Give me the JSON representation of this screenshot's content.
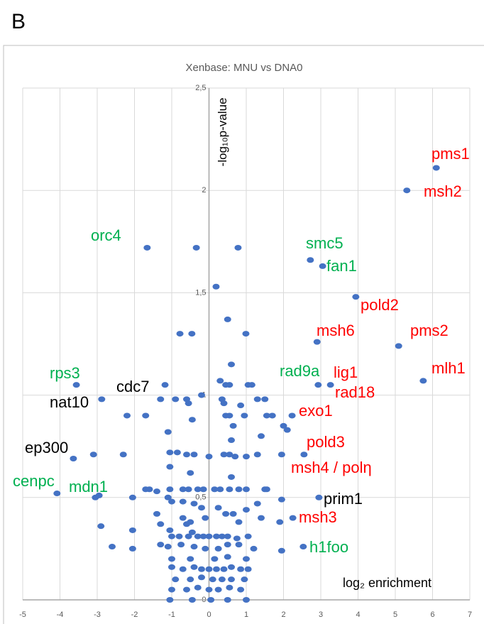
{
  "panel_label": "B",
  "chart_data": {
    "type": "scatter",
    "title": "Xenbase: MNU vs DNA0",
    "x_label": "log₂ enrichment",
    "y_label": "-log₁₀p-value",
    "color": "#4472c4",
    "grid": true,
    "xlim": [
      -5,
      7
    ],
    "xticks": [
      -5,
      -4,
      -3,
      -2,
      -1,
      0,
      1,
      2,
      3,
      4,
      5,
      6,
      7
    ],
    "ylim": [
      0,
      2.5
    ],
    "yticks": [
      0,
      {
        "value": 0.5,
        "label": "0,5"
      },
      1,
      {
        "value": 1.5,
        "label": "1,5"
      },
      2,
      {
        "value": 2.5,
        "label": "2,5"
      }
    ],
    "x": [
      6.1,
      5.31,
      -1.66,
      -0.34,
      0.78,
      2.72,
      3.05,
      0.19,
      3.94,
      5.09,
      2.9,
      -0.78,
      -0.46,
      0.99,
      0.5,
      5.75,
      2.93,
      3.26,
      -3.56,
      -1.18,
      -2.88,
      2.23,
      -3.64,
      2.55,
      -4.08,
      -3.05,
      -2.95,
      2.95,
      2.25,
      2.53,
      -2.2,
      -1.7,
      -1.3,
      -0.9,
      -0.6,
      -0.55,
      -0.2,
      0.35,
      0.4,
      0.45,
      0.55,
      0.45,
      0.55,
      0.85,
      1.05,
      1.15,
      1.3,
      1.5,
      1.55,
      1.7,
      2.0,
      2.1,
      0.65,
      1.4,
      -1.1,
      0.6,
      0.3,
      0.6,
      0.95,
      -0.45,
      -3.1,
      -2.3,
      -1.05,
      -0.85,
      -0.6,
      -0.4,
      0.0,
      0.4,
      0.55,
      0.7,
      1.0,
      1.3,
      1.95,
      -1.05,
      -0.5,
      0.6,
      -1.7,
      -1.6,
      -1.4,
      -1.05,
      -0.7,
      -0.55,
      -0.3,
      -0.15,
      0.15,
      0.3,
      0.55,
      0.8,
      1.0,
      1.5,
      1.55,
      -2.05,
      -1.1,
      -1.0,
      -0.7,
      -0.4,
      -0.2,
      0.25,
      0.45,
      0.65,
      1.0,
      1.3,
      1.95,
      -1.4,
      -0.7,
      -0.5,
      -0.1,
      0.8,
      1.4,
      1.9,
      -2.9,
      -2.05,
      -1.3,
      -1.05,
      -0.6,
      -0.45,
      -1.0,
      -0.8,
      -0.55,
      -0.3,
      -0.15,
      0.0,
      0.2,
      0.35,
      0.5,
      0.75,
      1.05,
      -2.6,
      -2.05,
      -1.3,
      -1.1,
      -0.75,
      -0.4,
      -0.1,
      0.25,
      0.5,
      0.8,
      1.2,
      1.95,
      -1.0,
      -0.5,
      0.15,
      0.5,
      1.0,
      -1.0,
      -0.7,
      -0.4,
      -0.2,
      0.0,
      0.2,
      0.4,
      0.6,
      0.85,
      1.05,
      -0.9,
      -0.5,
      -0.2,
      0.1,
      0.35,
      0.6,
      0.95,
      -1.0,
      -0.6,
      -0.3,
      0.0,
      0.25,
      0.55,
      0.85,
      -1.05,
      -0.45,
      0.05,
      0.5,
      1.0
    ],
    "values": [
      2.11,
      2.0,
      1.72,
      1.72,
      1.72,
      1.66,
      1.63,
      1.53,
      1.48,
      1.24,
      1.26,
      1.3,
      1.3,
      1.3,
      1.37,
      1.07,
      1.05,
      1.05,
      1.05,
      1.05,
      0.98,
      0.9,
      0.69,
      0.71,
      0.52,
      0.5,
      0.51,
      0.5,
      0.4,
      0.26,
      0.9,
      0.9,
      0.98,
      0.98,
      0.98,
      0.96,
      1.0,
      0.98,
      0.96,
      1.05,
      1.05,
      0.9,
      0.9,
      0.95,
      1.05,
      1.05,
      0.98,
      0.98,
      0.9,
      0.9,
      0.85,
      0.83,
      0.85,
      0.8,
      0.82,
      0.78,
      1.07,
      1.15,
      0.9,
      0.88,
      0.71,
      0.71,
      0.72,
      0.72,
      0.71,
      0.71,
      0.7,
      0.71,
      0.71,
      0.7,
      0.7,
      0.71,
      0.71,
      0.65,
      0.62,
      0.6,
      0.54,
      0.54,
      0.53,
      0.54,
      0.54,
      0.54,
      0.54,
      0.54,
      0.54,
      0.54,
      0.54,
      0.54,
      0.54,
      0.54,
      0.54,
      0.5,
      0.5,
      0.48,
      0.48,
      0.47,
      0.45,
      0.45,
      0.42,
      0.42,
      0.44,
      0.47,
      0.49,
      0.42,
      0.4,
      0.38,
      0.4,
      0.38,
      0.4,
      0.38,
      0.36,
      0.34,
      0.37,
      0.34,
      0.37,
      0.33,
      0.31,
      0.31,
      0.31,
      0.31,
      0.31,
      0.31,
      0.31,
      0.31,
      0.31,
      0.3,
      0.31,
      0.26,
      0.25,
      0.27,
      0.26,
      0.27,
      0.26,
      0.25,
      0.25,
      0.27,
      0.27,
      0.25,
      0.24,
      0.2,
      0.2,
      0.2,
      0.21,
      0.2,
      0.16,
      0.15,
      0.16,
      0.15,
      0.15,
      0.15,
      0.15,
      0.16,
      0.15,
      0.15,
      0.1,
      0.1,
      0.11,
      0.1,
      0.1,
      0.1,
      0.1,
      0.05,
      0.05,
      0.06,
      0.05,
      0.05,
      0.06,
      0.05,
      0.0,
      0.0,
      0.0,
      0.0,
      0.0
    ],
    "annotations": [
      {
        "text": "pms1",
        "color": "#ff0000"
      },
      {
        "text": "msh2",
        "color": "#ff0000"
      },
      {
        "text": "orc4",
        "color": "#00b050"
      },
      {
        "text": "smc5",
        "color": "#00b050"
      },
      {
        "text": "fan1",
        "color": "#00b050"
      },
      {
        "text": "pold2",
        "color": "#ff0000"
      },
      {
        "text": "msh6",
        "color": "#ff0000"
      },
      {
        "text": "pms2",
        "color": "#ff0000"
      },
      {
        "text": "mlh1",
        "color": "#ff0000"
      },
      {
        "text": "rad9a",
        "color": "#00b050"
      },
      {
        "text": "lig1",
        "color": "#ff0000"
      },
      {
        "text": "rps3",
        "color": "#00b050"
      },
      {
        "text": "cdc7",
        "color": "#000000"
      },
      {
        "text": "rad18",
        "color": "#ff0000"
      },
      {
        "text": "nat10",
        "color": "#000000"
      },
      {
        "text": "exo1",
        "color": "#ff0000"
      },
      {
        "text": "ep300",
        "color": "#000000"
      },
      {
        "text": "pold3",
        "color": "#ff0000"
      },
      {
        "text": "msh4 / polη",
        "color": "#ff0000"
      },
      {
        "text": "cenpc",
        "color": "#00b050"
      },
      {
        "text": "mdn1",
        "color": "#00b050"
      },
      {
        "text": "prim1",
        "color": "#000000"
      },
      {
        "text": "msh3",
        "color": "#ff0000"
      },
      {
        "text": "h1foo",
        "color": "#00b050"
      }
    ]
  }
}
